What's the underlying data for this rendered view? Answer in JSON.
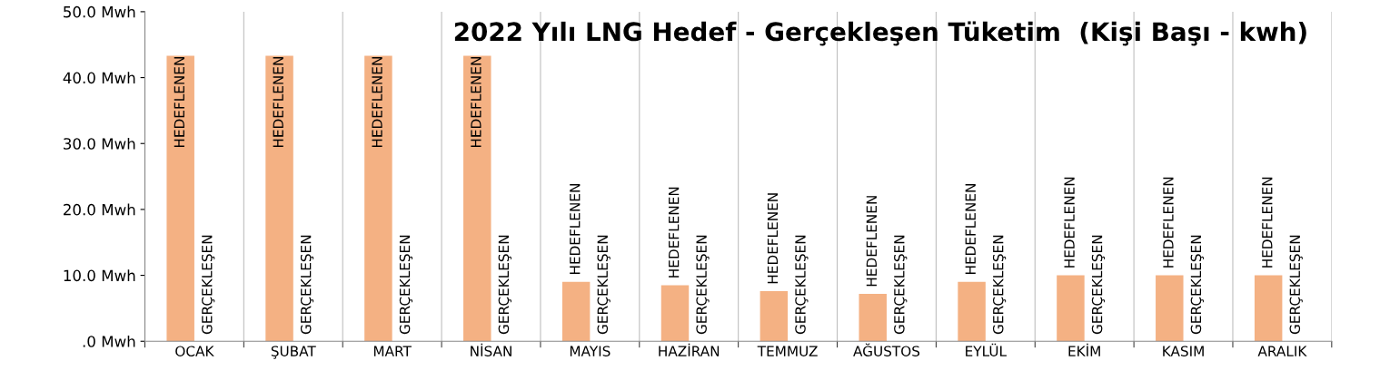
{
  "chart_data": {
    "type": "bar",
    "title": "2022 Yılı LNG Hedef - Gerçekleşen Tüketim  (Kişi Başı - kwh)",
    "categories": [
      "OCAK",
      "ŞUBAT",
      "MART",
      "NİSAN",
      "MAYIS",
      "HAZİRAN",
      "TEMMUZ",
      "AĞUSTOS",
      "EYLÜL",
      "EKİM",
      "KASIM",
      "ARALIK"
    ],
    "series": [
      {
        "name": "HEDEFLENEN",
        "color": "#f4b183",
        "values": [
          43.3,
          43.3,
          43.3,
          43.3,
          9.0,
          8.5,
          7.6,
          7.2,
          9.0,
          10.0,
          10.0,
          10.0
        ]
      },
      {
        "name": "GERÇEKLEŞEN",
        "values": [
          0,
          0,
          0,
          0,
          0,
          0,
          0,
          0,
          0,
          0,
          0,
          0
        ]
      }
    ],
    "ylim": [
      0,
      50
    ],
    "yticks": [
      {
        "value": 0,
        "label": ".0 Mwh"
      },
      {
        "value": 10,
        "label": "10.0 Mwh"
      },
      {
        "value": 20,
        "label": "20.0 Mwh"
      },
      {
        "value": 30,
        "label": "30.0 Mwh"
      },
      {
        "value": 40,
        "label": "40.0 Mwh"
      },
      {
        "value": 50,
        "label": "50.0 Mwh"
      }
    ],
    "grid": "x",
    "legend": false
  }
}
